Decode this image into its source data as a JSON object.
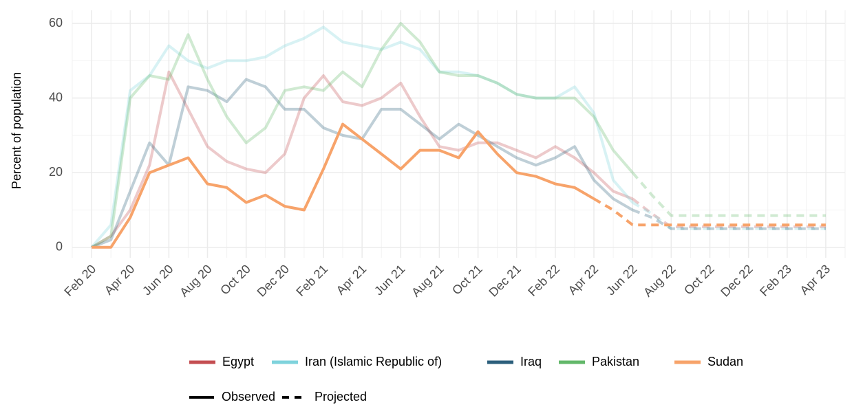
{
  "chart_data": {
    "type": "line",
    "y_label": "Percent of population",
    "x": [
      "2020-02",
      "2020-03",
      "2020-04",
      "2020-05",
      "2020-06",
      "2020-07",
      "2020-08",
      "2020-09",
      "2020-10",
      "2020-11",
      "2020-12",
      "2021-01",
      "2021-02",
      "2021-03",
      "2021-04",
      "2021-05",
      "2021-06",
      "2021-07",
      "2021-08",
      "2021-09",
      "2021-10",
      "2021-11",
      "2021-12",
      "2022-01",
      "2022-02",
      "2022-03",
      "2022-04",
      "2022-05",
      "2022-06",
      "2022-07",
      "2022-08",
      "2022-09",
      "2022-10",
      "2022-11",
      "2022-12",
      "2023-01",
      "2023-02",
      "2023-03",
      "2023-04"
    ],
    "xlim": [
      "2020-01",
      "2023-05"
    ],
    "xticks": [
      {
        "value": "2020-02",
        "label": "Feb 20"
      },
      {
        "value": "2020-04",
        "label": "Apr 20"
      },
      {
        "value": "2020-06",
        "label": "Jun 20"
      },
      {
        "value": "2020-08",
        "label": "Aug 20"
      },
      {
        "value": "2020-10",
        "label": "Oct 20"
      },
      {
        "value": "2020-12",
        "label": "Dec 20"
      },
      {
        "value": "2021-02",
        "label": "Feb 21"
      },
      {
        "value": "2021-04",
        "label": "Apr 21"
      },
      {
        "value": "2021-06",
        "label": "Jun 21"
      },
      {
        "value": "2021-08",
        "label": "Aug 21"
      },
      {
        "value": "2021-10",
        "label": "Oct 21"
      },
      {
        "value": "2021-12",
        "label": "Dec 21"
      },
      {
        "value": "2022-02",
        "label": "Feb 22"
      },
      {
        "value": "2022-04",
        "label": "Apr 22"
      },
      {
        "value": "2022-06",
        "label": "Jun 22"
      },
      {
        "value": "2022-08",
        "label": "Aug 22"
      },
      {
        "value": "2022-10",
        "label": "Oct 22"
      },
      {
        "value": "2022-12",
        "label": "Dec 22"
      },
      {
        "value": "2023-02",
        "label": "Feb 23"
      },
      {
        "value": "2023-04",
        "label": "Apr 23"
      }
    ],
    "ylim": [
      -2.8,
      63.5
    ],
    "yticks": [
      0,
      20,
      40,
      60
    ],
    "grid": true,
    "series": [
      {
        "name": "Egypt",
        "color": "#c44e52",
        "opacity": 0.3,
        "values": [
          0,
          3,
          10,
          22,
          47,
          37,
          27,
          23,
          21,
          20,
          25,
          40,
          46,
          39,
          38,
          40,
          44,
          35,
          27,
          26,
          28,
          28,
          26,
          24,
          27,
          24,
          20,
          15,
          13,
          null,
          null,
          null,
          null,
          null,
          null,
          null,
          null,
          null,
          null
        ],
        "projected": [
          null,
          null,
          null,
          null,
          null,
          null,
          null,
          null,
          null,
          null,
          null,
          null,
          null,
          null,
          null,
          null,
          null,
          null,
          null,
          null,
          null,
          null,
          null,
          null,
          null,
          null,
          null,
          null,
          13,
          9,
          5.5,
          5.5,
          5.5,
          5.5,
          5.5,
          5.5,
          5.5,
          5.5,
          5.5
        ]
      },
      {
        "name": "Iran (Islamic Republic of)",
        "color": "#7fd3dc",
        "opacity": 0.3,
        "values": [
          0,
          6,
          42,
          46,
          54,
          50,
          48,
          50,
          50,
          51,
          54,
          56,
          59,
          55,
          54,
          53,
          55,
          53,
          47,
          47,
          46,
          44,
          41,
          40,
          40,
          43,
          36,
          18,
          12,
          null,
          null,
          null,
          null,
          null,
          null,
          null,
          null,
          null,
          null
        ],
        "projected": [
          null,
          null,
          null,
          null,
          null,
          null,
          null,
          null,
          null,
          null,
          null,
          null,
          null,
          null,
          null,
          null,
          null,
          null,
          null,
          null,
          null,
          null,
          null,
          null,
          null,
          null,
          null,
          null,
          12,
          9,
          5,
          5,
          5,
          5,
          5,
          5,
          5,
          5,
          5
        ]
      },
      {
        "name": "Iraq",
        "color": "#2c5f7c",
        "opacity": 0.3,
        "values": [
          0,
          2,
          15,
          28,
          22,
          43,
          42,
          39,
          45,
          43,
          37,
          37,
          32,
          30,
          29,
          37,
          37,
          33,
          29,
          33,
          30,
          27,
          24,
          22,
          24,
          27,
          18,
          13,
          10,
          null,
          null,
          null,
          null,
          null,
          null,
          null,
          null,
          null,
          null
        ],
        "projected": [
          null,
          null,
          null,
          null,
          null,
          null,
          null,
          null,
          null,
          null,
          null,
          null,
          null,
          null,
          null,
          null,
          null,
          null,
          null,
          null,
          null,
          null,
          null,
          null,
          null,
          null,
          null,
          null,
          10,
          8,
          5,
          5,
          5,
          5,
          5,
          5,
          5,
          5,
          5
        ]
      },
      {
        "name": "Pakistan",
        "color": "#63b86a",
        "opacity": 0.3,
        "values": [
          0,
          3,
          40,
          46,
          45,
          57,
          45,
          35,
          28,
          32,
          42,
          43,
          42,
          47,
          43,
          53,
          60,
          55,
          47,
          46,
          46,
          44,
          41,
          40,
          40,
          40,
          35,
          26,
          20,
          null,
          null,
          null,
          null,
          null,
          null,
          null,
          null,
          null,
          null
        ],
        "projected": [
          null,
          null,
          null,
          null,
          null,
          null,
          null,
          null,
          null,
          null,
          null,
          null,
          null,
          null,
          null,
          null,
          null,
          null,
          null,
          null,
          null,
          null,
          null,
          null,
          null,
          null,
          null,
          null,
          20,
          14,
          8.5,
          8.5,
          8.5,
          8.5,
          8.5,
          8.5,
          8.5,
          8.5,
          8.5
        ]
      },
      {
        "name": "Sudan",
        "color": "#f7a36a",
        "opacity": 1,
        "values": [
          0,
          0,
          8,
          20,
          22,
          24,
          17,
          16,
          12,
          14,
          11,
          10,
          21,
          33,
          29,
          25,
          21,
          26,
          26,
          24,
          31,
          25,
          20,
          19,
          17,
          16,
          13,
          null,
          null,
          null,
          null,
          null,
          null,
          null,
          null,
          null,
          null,
          null,
          null
        ],
        "projected": [
          null,
          null,
          null,
          null,
          null,
          null,
          null,
          null,
          null,
          null,
          null,
          null,
          null,
          null,
          null,
          null,
          null,
          null,
          null,
          null,
          null,
          null,
          null,
          null,
          null,
          null,
          13,
          10,
          6,
          6,
          6,
          6,
          6,
          6,
          6,
          6,
          6,
          6,
          6
        ]
      }
    ],
    "linetype_legend": [
      "Observed",
      "Projected"
    ]
  }
}
